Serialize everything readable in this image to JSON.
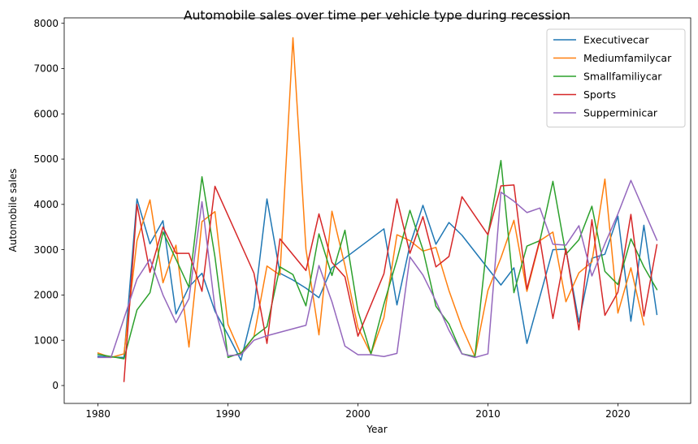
{
  "chart_data": {
    "type": "line",
    "title": "Automobile sales over time per vehicle type during recession",
    "xlabel": "Year",
    "ylabel": "Automobile sales",
    "xlim": [
      1977.4,
      2025.6
    ],
    "ylim": [
      -395,
      8120
    ],
    "xticks": [
      1980,
      1990,
      2000,
      2010,
      2020
    ],
    "yticks": [
      0,
      1000,
      2000,
      3000,
      4000,
      5000,
      6000,
      7000,
      8000
    ],
    "grid": false,
    "legend_position": "top-right",
    "series": [
      {
        "name": "Executivecar",
        "color": "#1f77b4",
        "points": [
          [
            1980,
            650
          ],
          [
            1981,
            630
          ],
          [
            1982,
            620
          ],
          [
            1983,
            4120
          ],
          [
            1984,
            3130
          ],
          [
            1985,
            3640
          ],
          [
            1986,
            1580
          ],
          [
            1987,
            2180
          ],
          [
            1988,
            2480
          ],
          [
            1989,
            1640
          ],
          [
            1990,
            1120
          ],
          [
            1991,
            560
          ],
          [
            1992,
            1720
          ],
          [
            1993,
            4120
          ],
          [
            1994,
            2480
          ],
          [
            1995,
            2330
          ],
          [
            1996,
            2150
          ],
          [
            1997,
            1940
          ],
          [
            1998,
            2600
          ],
          [
            2002,
            3460
          ],
          [
            2003,
            1780
          ],
          [
            2004,
            3100
          ],
          [
            2005,
            3980
          ],
          [
            2006,
            3120
          ],
          [
            2007,
            3600
          ],
          [
            2008,
            3320
          ],
          [
            2011,
            2220
          ],
          [
            2012,
            2600
          ],
          [
            2013,
            930
          ],
          [
            2015,
            3000
          ],
          [
            2016,
            3010
          ],
          [
            2017,
            1400
          ],
          [
            2018,
            2810
          ],
          [
            2019,
            2900
          ],
          [
            2020,
            3740
          ],
          [
            2021,
            1420
          ],
          [
            2022,
            3540
          ],
          [
            2023,
            1570
          ]
        ]
      },
      {
        "name": "Mediumfamilycar",
        "color": "#ff7f0e",
        "points": [
          [
            1980,
            720
          ],
          [
            1981,
            620
          ],
          [
            1982,
            700
          ],
          [
            1983,
            3200
          ],
          [
            1984,
            4100
          ],
          [
            1985,
            2270
          ],
          [
            1986,
            3100
          ],
          [
            1987,
            850
          ],
          [
            1988,
            3620
          ],
          [
            1989,
            3840
          ],
          [
            1990,
            1350
          ],
          [
            1991,
            690
          ],
          [
            1992,
            1080
          ],
          [
            1993,
            2640
          ],
          [
            1994,
            2440
          ],
          [
            1995,
            7680
          ],
          [
            1996,
            3010
          ],
          [
            1997,
            1120
          ],
          [
            1998,
            3850
          ],
          [
            1999,
            2650
          ],
          [
            2000,
            1280
          ],
          [
            2001,
            700
          ],
          [
            2002,
            1500
          ],
          [
            2003,
            3330
          ],
          [
            2004,
            3200
          ],
          [
            2005,
            2970
          ],
          [
            2006,
            3050
          ],
          [
            2007,
            2100
          ],
          [
            2008,
            1290
          ],
          [
            2009,
            640
          ],
          [
            2010,
            2100
          ],
          [
            2011,
            2820
          ],
          [
            2012,
            3650
          ],
          [
            2013,
            2080
          ],
          [
            2014,
            3200
          ],
          [
            2015,
            3390
          ],
          [
            2016,
            1850
          ],
          [
            2017,
            2490
          ],
          [
            2018,
            2730
          ],
          [
            2019,
            4560
          ],
          [
            2020,
            1600
          ],
          [
            2021,
            2600
          ],
          [
            2022,
            1340
          ]
        ]
      },
      {
        "name": "Smallfamiliycar",
        "color": "#2ca02c",
        "points": [
          [
            1980,
            690
          ],
          [
            1981,
            640
          ],
          [
            1982,
            590
          ],
          [
            1983,
            1670
          ],
          [
            1984,
            2050
          ],
          [
            1985,
            3390
          ],
          [
            1986,
            2790
          ],
          [
            1987,
            2170
          ],
          [
            1988,
            4610
          ],
          [
            1989,
            2840
          ],
          [
            1990,
            620
          ],
          [
            1991,
            720
          ],
          [
            1992,
            1080
          ],
          [
            1993,
            1300
          ],
          [
            1994,
            2620
          ],
          [
            1995,
            2450
          ],
          [
            1996,
            1760
          ],
          [
            1997,
            3350
          ],
          [
            1998,
            2430
          ],
          [
            1999,
            3430
          ],
          [
            2000,
            1650
          ],
          [
            2001,
            700
          ],
          [
            2002,
            1800
          ],
          [
            2003,
            2780
          ],
          [
            2004,
            3870
          ],
          [
            2005,
            3000
          ],
          [
            2006,
            1750
          ],
          [
            2007,
            1360
          ],
          [
            2008,
            700
          ],
          [
            2009,
            640
          ],
          [
            2010,
            3320
          ],
          [
            2011,
            4970
          ],
          [
            2012,
            2050
          ],
          [
            2013,
            3080
          ],
          [
            2014,
            3200
          ],
          [
            2015,
            4510
          ],
          [
            2016,
            2900
          ],
          [
            2017,
            3220
          ],
          [
            2018,
            3960
          ],
          [
            2019,
            2520
          ],
          [
            2020,
            2230
          ],
          [
            2021,
            3240
          ],
          [
            2022,
            2620
          ],
          [
            2023,
            2120
          ]
        ]
      },
      {
        "name": "Sports",
        "color": "#d62728",
        "points": [
          [
            1982,
            90
          ],
          [
            1983,
            4000
          ],
          [
            1984,
            2500
          ],
          [
            1985,
            3500
          ],
          [
            1986,
            2920
          ],
          [
            1987,
            2920
          ],
          [
            1988,
            2080
          ],
          [
            1989,
            4400
          ],
          [
            1992,
            2480
          ],
          [
            1993,
            930
          ],
          [
            1994,
            3240
          ],
          [
            1996,
            2540
          ],
          [
            1997,
            3790
          ],
          [
            1998,
            2720
          ],
          [
            1999,
            2400
          ],
          [
            2000,
            1090
          ],
          [
            2002,
            2470
          ],
          [
            2003,
            4120
          ],
          [
            2004,
            2920
          ],
          [
            2005,
            3730
          ],
          [
            2006,
            2620
          ],
          [
            2007,
            2850
          ],
          [
            2008,
            4170
          ],
          [
            2010,
            3330
          ],
          [
            2011,
            4410
          ],
          [
            2012,
            4430
          ],
          [
            2013,
            2130
          ],
          [
            2014,
            3230
          ],
          [
            2015,
            1480
          ],
          [
            2016,
            3020
          ],
          [
            2017,
            1230
          ],
          [
            2018,
            3660
          ],
          [
            2019,
            1550
          ],
          [
            2020,
            2060
          ],
          [
            2021,
            3780
          ],
          [
            2022,
            1530
          ],
          [
            2023,
            3110
          ]
        ]
      },
      {
        "name": "Supperminicar",
        "color": "#9467bd",
        "points": [
          [
            1980,
            620
          ],
          [
            1981,
            620
          ],
          [
            1982,
            1480
          ],
          [
            1983,
            2350
          ],
          [
            1984,
            2790
          ],
          [
            1985,
            2000
          ],
          [
            1986,
            1390
          ],
          [
            1987,
            1920
          ],
          [
            1988,
            4060
          ],
          [
            1989,
            1710
          ],
          [
            1990,
            660
          ],
          [
            1991,
            680
          ],
          [
            1992,
            1000
          ],
          [
            1993,
            1100
          ],
          [
            1996,
            1330
          ],
          [
            1997,
            2650
          ],
          [
            1998,
            1850
          ],
          [
            1999,
            870
          ],
          [
            2000,
            680
          ],
          [
            2001,
            680
          ],
          [
            2002,
            640
          ],
          [
            2003,
            710
          ],
          [
            2004,
            2840
          ],
          [
            2005,
            2440
          ],
          [
            2006,
            1860
          ],
          [
            2007,
            1220
          ],
          [
            2008,
            700
          ],
          [
            2009,
            620
          ],
          [
            2010,
            700
          ],
          [
            2011,
            4270
          ],
          [
            2012,
            4070
          ],
          [
            2013,
            3820
          ],
          [
            2014,
            3920
          ],
          [
            2015,
            3120
          ],
          [
            2016,
            3100
          ],
          [
            2017,
            3530
          ],
          [
            2018,
            2420
          ],
          [
            2019,
            3130
          ],
          [
            2020,
            3790
          ],
          [
            2021,
            4530
          ],
          [
            2022,
            3870
          ],
          [
            2023,
            3210
          ]
        ]
      }
    ]
  }
}
